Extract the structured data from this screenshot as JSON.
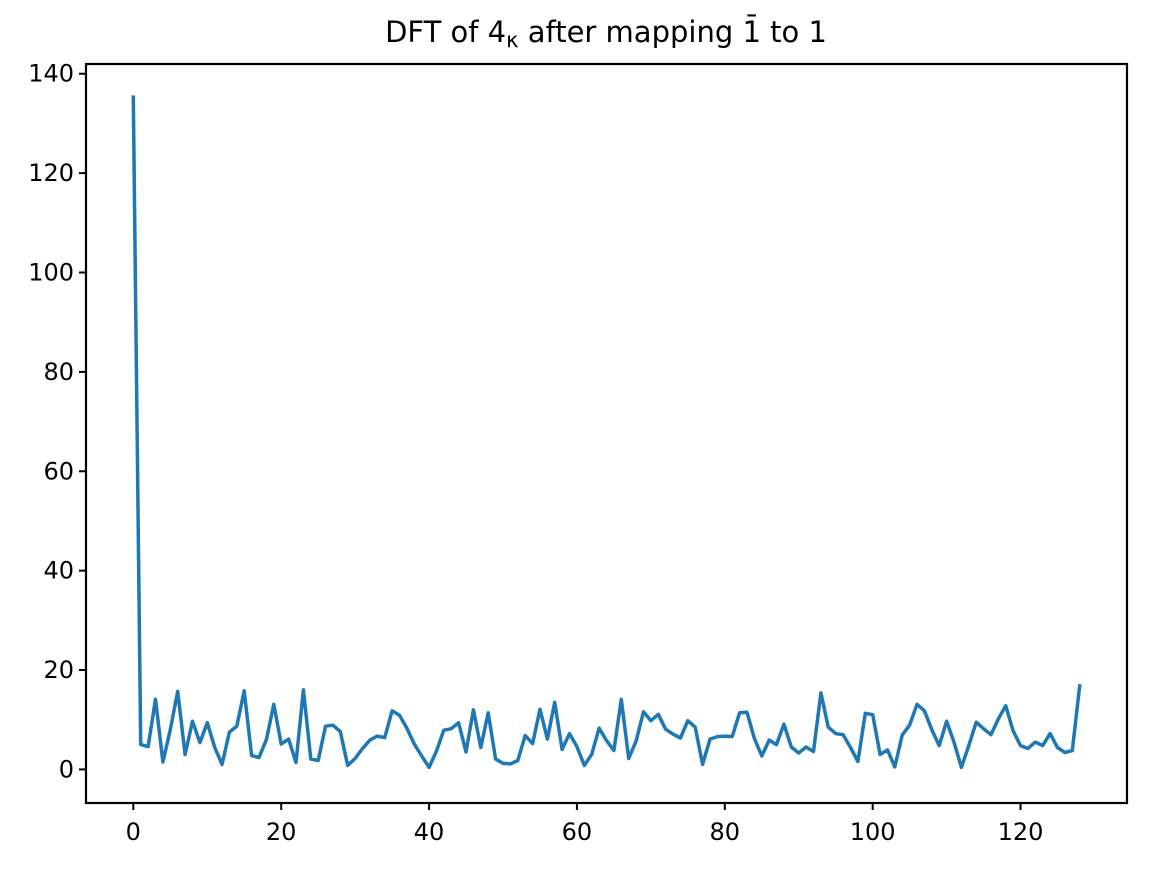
{
  "figure": {
    "background": "#ffffff",
    "title": {
      "prefix": "DFT of 4",
      "subscript": "κ",
      "suffix": " after mapping 1̄ to 1"
    }
  },
  "chart_data": {
    "type": "line",
    "title": "DFT of 4κ after mapping 1̄ to 1",
    "xlabel": "",
    "ylabel": "",
    "legend": null,
    "grid": false,
    "line_color": "#1f77b4",
    "line_width": 3.5,
    "spine_color": "#000000",
    "x_ticks": [
      0,
      20,
      40,
      60,
      80,
      100,
      120
    ],
    "y_ticks": [
      0,
      20,
      40,
      60,
      80,
      100,
      120,
      140
    ],
    "xlim": [
      -6.4,
      134.4
    ],
    "ylim": [
      -6.76,
      141.96
    ],
    "x_start": 0,
    "x_end": 128,
    "x_step": 1,
    "values": [
      135.3,
      5.0,
      4.6,
      14.1,
      1.5,
      8.0,
      15.7,
      3.0,
      9.7,
      5.4,
      9.4,
      4.5,
      1.0,
      7.5,
      8.7,
      15.8,
      2.8,
      2.4,
      6.0,
      13.1,
      5.1,
      6.1,
      1.4,
      16.0,
      2.1,
      1.8,
      8.7,
      8.9,
      7.6,
      0.8,
      2.2,
      4.2,
      5.9,
      6.7,
      6.4,
      11.8,
      10.9,
      8.3,
      5.1,
      2.7,
      0.4,
      3.7,
      7.9,
      8.2,
      9.4,
      3.5,
      12.0,
      4.4,
      11.4,
      2.1,
      1.2,
      1.1,
      1.8,
      6.8,
      5.2,
      12.1,
      6.1,
      13.5,
      4.0,
      7.2,
      4.6,
      0.8,
      3.0,
      8.3,
      5.8,
      3.8,
      14.1,
      2.2,
      5.7,
      11.6,
      9.8,
      11.1,
      8.1,
      7.1,
      6.3,
      9.8,
      8.5,
      1.0,
      6.1,
      6.6,
      6.7,
      6.6,
      11.4,
      11.5,
      6.2,
      2.7,
      5.9,
      5.0,
      9.1,
      4.5,
      3.3,
      4.5,
      3.6,
      15.4,
      8.5,
      7.2,
      7.0,
      4.4,
      1.6,
      11.3,
      11.0,
      3.0,
      3.9,
      0.5,
      6.9,
      8.9,
      13.1,
      11.8,
      8.0,
      4.8,
      9.7,
      5.5,
      0.4,
      4.8,
      9.5,
      8.2,
      7.0,
      10.2,
      12.8,
      7.8,
      4.8,
      4.2,
      5.5,
      4.8,
      7.2,
      4.4,
      3.4,
      3.8,
      16.8
    ]
  }
}
